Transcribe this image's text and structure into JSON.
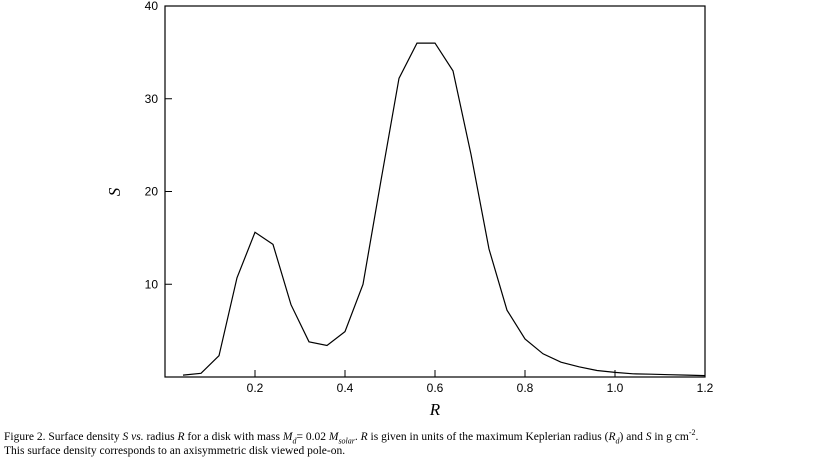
{
  "chart_data": {
    "type": "line",
    "xlabel": "R",
    "ylabel": "S",
    "xlim": [
      0.0,
      1.2
    ],
    "ylim": [
      0,
      40
    ],
    "xticks": [
      0.2,
      0.4,
      0.6,
      0.8,
      1.0,
      1.2
    ],
    "xtick_labels": [
      "0.2",
      "0.4",
      "0.6",
      "0.8",
      "1.0",
      "1.2"
    ],
    "yticks": [
      10,
      20,
      30,
      40
    ],
    "ytick_labels": [
      "10",
      "20",
      "30",
      "40"
    ],
    "grid": false,
    "series": [
      {
        "x": [
          0.04,
          0.08,
          0.12,
          0.16,
          0.2,
          0.24,
          0.28,
          0.32,
          0.36,
          0.4,
          0.44,
          0.48,
          0.52,
          0.56,
          0.6,
          0.64,
          0.68,
          0.72,
          0.76,
          0.8,
          0.84,
          0.88,
          0.92,
          0.96,
          1.0,
          1.04,
          1.08,
          1.12,
          1.16,
          1.2
        ],
        "y": [
          0.2,
          0.4,
          2.3,
          10.7,
          15.6,
          14.3,
          7.8,
          3.8,
          3.4,
          4.9,
          10.0,
          21.2,
          32.2,
          36.0,
          36.0,
          33.0,
          24.0,
          13.8,
          7.2,
          4.1,
          2.5,
          1.6,
          1.1,
          0.7,
          0.5,
          0.35,
          0.3,
          0.25,
          0.2,
          0.15
        ]
      }
    ]
  },
  "caption": {
    "figure_label": "Figure 2.",
    "t1": " Surface density ",
    "S": "S",
    "vs": "vs.",
    "t2": " radius ",
    "R": "R",
    "t3": " for a disk with mass ",
    "M": "M",
    "d": "d",
    "t4": "= 0.02 ",
    "M2": "M",
    "solar": "solar",
    "t5": ". ",
    "R2": "R",
    "t6": " is given in units of the maximum Keplerian radius (",
    "R3": "R",
    "d2": "d",
    "t7": ") and ",
    "S2": "S",
    "t8": " in g cm",
    "exp": "-2",
    "t9": ".",
    "line2": "This surface density corresponds to an axisymmetric disk viewed pole-on."
  }
}
